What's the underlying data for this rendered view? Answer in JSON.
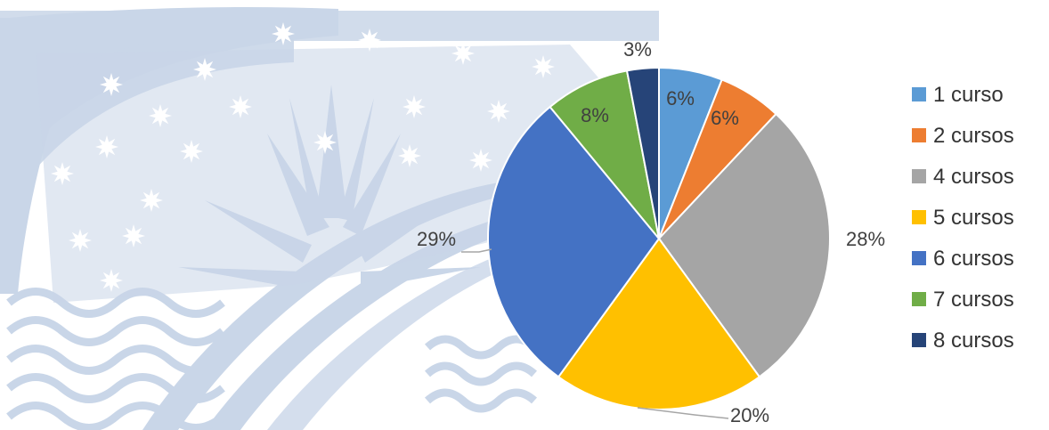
{
  "chart_data": {
    "type": "pie",
    "slices": [
      {
        "name": "1 curso",
        "value": 6,
        "label": "6%",
        "color": "#5B9BD5"
      },
      {
        "name": "2 cursos",
        "value": 6,
        "label": "6%",
        "color": "#ED7D31"
      },
      {
        "name": "4 cursos",
        "value": 28,
        "label": "28%",
        "color": "#A5A5A5"
      },
      {
        "name": "5 cursos",
        "value": 20,
        "label": "20%",
        "color": "#FFC000"
      },
      {
        "name": "6 cursos",
        "value": 29,
        "label": "29%",
        "color": "#4472C4"
      },
      {
        "name": "7 cursos",
        "value": 8,
        "label": "8%",
        "color": "#70AD47"
      },
      {
        "name": "8 cursos",
        "value": 3,
        "label": "3%",
        "color": "#264478"
      }
    ],
    "legend_position": "right",
    "start_angle": "top",
    "direction": "clockwise"
  },
  "background": {
    "watermark": "seal-sun-stars-waves-watermark",
    "watermark_color": "#C9D6E8"
  }
}
